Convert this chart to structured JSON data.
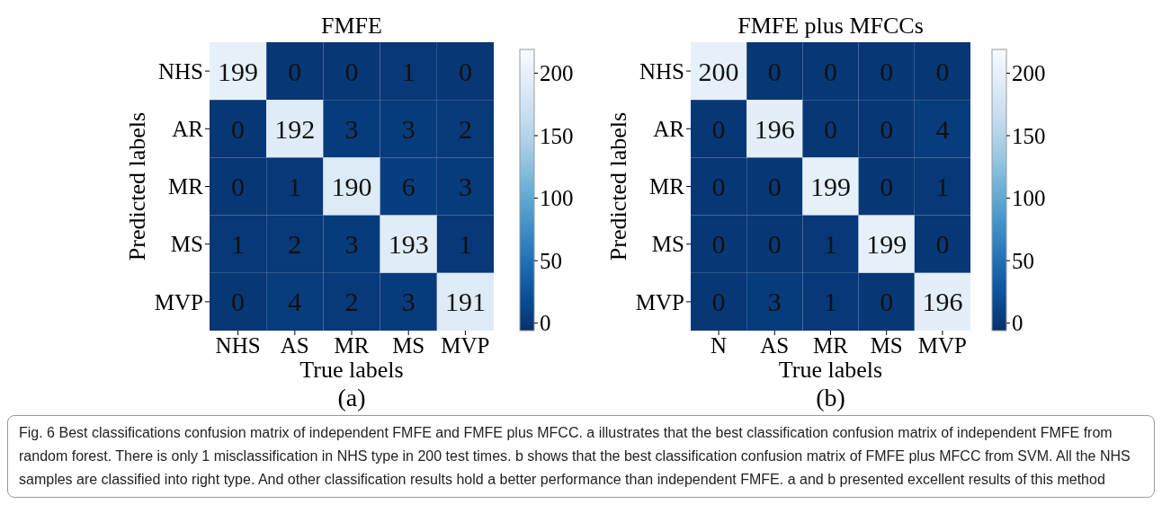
{
  "chart_data": [
    {
      "type": "heatmap",
      "title": "FMFE",
      "xlabel": "True labels",
      "ylabel": "Predicted labels",
      "categories": [
        "NHS",
        "AS",
        "MR",
        "MS",
        "MVP"
      ],
      "y_categories": [
        "NHS",
        "AR",
        "MR",
        "MS",
        "MVP"
      ],
      "cells": [
        [
          199,
          0,
          0,
          1,
          0
        ],
        [
          0,
          192,
          3,
          3,
          2
        ],
        [
          0,
          1,
          190,
          6,
          3
        ],
        [
          1,
          2,
          3,
          193,
          1
        ],
        [
          0,
          4,
          2,
          3,
          191
        ]
      ],
      "clim": [
        -6,
        219
      ],
      "cticks": [
        0,
        50,
        100,
        150,
        200
      ],
      "data_labels": true,
      "annotations": [
        "(a)"
      ]
    },
    {
      "type": "heatmap",
      "title": "FMFE plus MFCCs",
      "xlabel": "True labels",
      "ylabel": "Predicted labels",
      "categories": [
        "N",
        "AS",
        "MR",
        "MS",
        "MVP"
      ],
      "y_categories": [
        "NHS",
        "AR",
        "MR",
        "MS",
        "MVP"
      ],
      "cells": [
        [
          200,
          0,
          0,
          0,
          0
        ],
        [
          0,
          196,
          0,
          0,
          4
        ],
        [
          0,
          0,
          199,
          0,
          1
        ],
        [
          0,
          0,
          1,
          199,
          0
        ],
        [
          0,
          3,
          1,
          0,
          196
        ]
      ],
      "clim": [
        -6,
        219
      ],
      "cticks": [
        0,
        50,
        100,
        150,
        200
      ],
      "data_labels": true,
      "annotations": [
        "(b)",
        "Fig. 6  Best classifications confusion matrix of independent FMFE and FMFE plus MFCC. a illustrates that the best classification confusion matrix of independent FMFE from random forest. There is only 1 misclassification in NHS type in 200 test times. b shows that the best classification confusion matrix of FMFE plus MFCC from SVM. All the NHS samples are classified into right type. And other classification results hold a better performance than independent FMFE. a and b presented excellent results of this method"
      ]
    }
  ]
}
